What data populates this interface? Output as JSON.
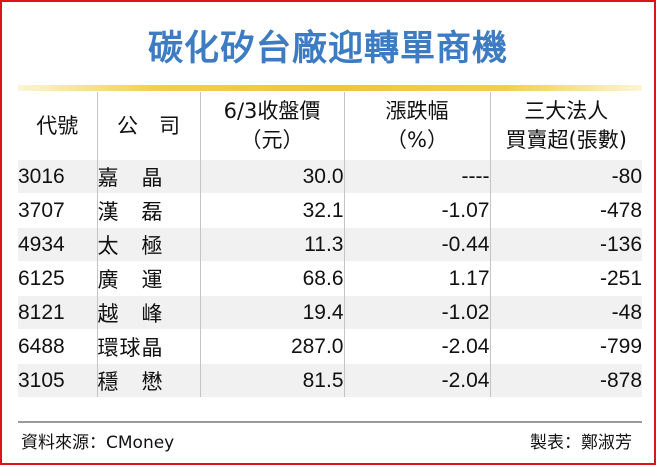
{
  "title": "碳化矽台廠迎轉單商機",
  "table": {
    "headers": {
      "code": "代號",
      "company": "公　司",
      "price_line1": "6/3收盤價",
      "price_line2": "（元）",
      "change_line1": "漲跌幅",
      "change_line2": "（%）",
      "inst_line1": "三大法人",
      "inst_line2": "買賣超(張數)"
    },
    "rows": [
      {
        "code": "3016",
        "name": "嘉　晶",
        "price": "30.0",
        "change": "----",
        "inst": "-80"
      },
      {
        "code": "3707",
        "name": "漢　磊",
        "price": "32.1",
        "change": "-1.07",
        "inst": "-478"
      },
      {
        "code": "4934",
        "name": "太　極",
        "price": "11.3",
        "change": "-0.44",
        "inst": "-136"
      },
      {
        "code": "6125",
        "name": "廣　運",
        "price": "68.6",
        "change": "1.17",
        "inst": "-251"
      },
      {
        "code": "8121",
        "name": "越　峰",
        "price": "19.4",
        "change": "-1.02",
        "inst": "-48"
      },
      {
        "code": "6488",
        "name": "環球晶",
        "price": "287.0",
        "change": "-2.04",
        "inst": "-799"
      },
      {
        "code": "3105",
        "name": "穩　懋",
        "price": "81.5",
        "change": "-2.04",
        "inst": "-878"
      }
    ]
  },
  "footer": {
    "source": "資料來源：CMoney",
    "maker": "製表：鄭淑芳"
  },
  "colors": {
    "title": "#3d7cc2",
    "frame": "#d9141b",
    "rule": "#f0c63a",
    "stripe": "#f1f1f1"
  }
}
